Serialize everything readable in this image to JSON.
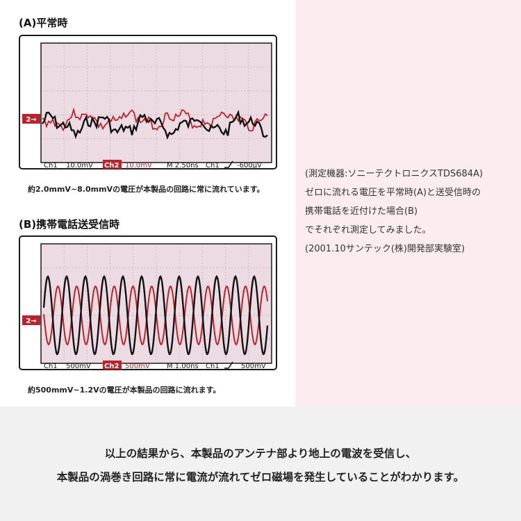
{
  "section_a": {
    "title": "(A)平常時",
    "caption": "約2.0mmV~8.0mmVの電圧が本製品の回路に常に流れています。",
    "marker": "2→",
    "readout": {
      "ch1": "Ch1",
      "ch1_scale": "10.0mV",
      "ch2": "Ch2",
      "ch2_scale": "10.0mV",
      "timebase": "M 2.50ns",
      "trig_ch": "Ch1",
      "trig_level": "-600μV"
    }
  },
  "section_b": {
    "title": "(B)携帯電話送受信時",
    "caption": "約500mmV~1.2Vの電圧が本製品の回路に流れます。",
    "marker": "2→",
    "readout": {
      "ch1": "Ch1",
      "ch1_scale": "500mV",
      "ch2": "Ch2",
      "ch2_scale": "500mV",
      "timebase": "M 1.00ns",
      "trig_ch": "Ch1",
      "trig_level": "500mV"
    }
  },
  "notes": [
    "(測定機器:ソニーテクトロニクスTDS684A)",
    "ゼロに流れる電圧を平常時(A)と送受信時の",
    "携帯電話を近付けた場合(B)",
    "でそれぞれ測定してみました。",
    "(2001.10サンテック(株)開発部実験室)"
  ],
  "conclusion": [
    "以上の結果から、本製品のアンテナ部より地上の電波を受信し、",
    "本製品の渦巻き回路に常に電流が流れてゼロ磁場を発生していることがわかります。"
  ],
  "colors": {
    "ch1": "#111111",
    "ch2": "#b8242c",
    "screen": "#ecdbe2",
    "marker_bg": "#b8242c"
  }
}
